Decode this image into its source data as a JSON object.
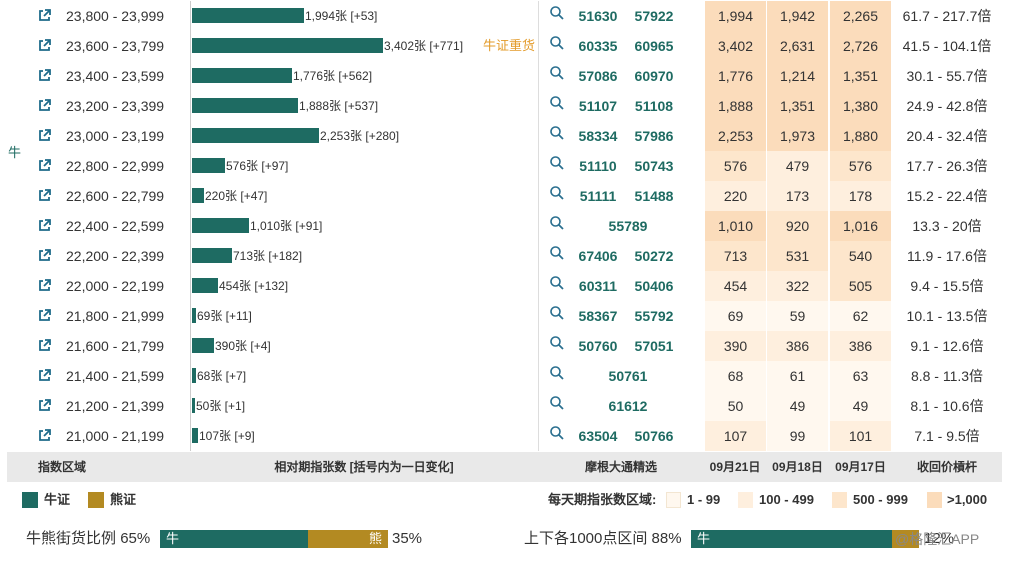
{
  "side_label": "牛",
  "rows": [
    {
      "range": "23,800 - 23,999",
      "bar_frac": 0.32,
      "bar_text": "1,994张 [+53]",
      "tag": "",
      "codes": [
        "51630",
        "57922"
      ],
      "v": [
        "1,994",
        "1,942",
        "2,265"
      ],
      "lvl": [
        4,
        4,
        4
      ],
      "mult": "61.7 - 217.7倍"
    },
    {
      "range": "23,600 - 23,799",
      "bar_frac": 0.546,
      "bar_text": "3,402张 [+771]",
      "tag": "牛证重货",
      "codes": [
        "60335",
        "60965"
      ],
      "v": [
        "3,402",
        "2,631",
        "2,726"
      ],
      "lvl": [
        4,
        4,
        4
      ],
      "mult": "41.5 - 104.1倍"
    },
    {
      "range": "23,400 - 23,599",
      "bar_frac": 0.285,
      "bar_text": "1,776张 [+562]",
      "tag": "",
      "codes": [
        "57086",
        "60970"
      ],
      "v": [
        "1,776",
        "1,214",
        "1,351"
      ],
      "lvl": [
        4,
        4,
        4
      ],
      "mult": "30.1 - 55.7倍"
    },
    {
      "range": "23,200 - 23,399",
      "bar_frac": 0.303,
      "bar_text": "1,888张 [+537]",
      "tag": "",
      "codes": [
        "51107",
        "51108"
      ],
      "v": [
        "1,888",
        "1,351",
        "1,380"
      ],
      "lvl": [
        4,
        4,
        4
      ],
      "mult": "24.9 - 42.8倍"
    },
    {
      "range": "23,000 - 23,199",
      "bar_frac": 0.362,
      "bar_text": "2,253张 [+280]",
      "tag": "",
      "codes": [
        "58334",
        "57986"
      ],
      "v": [
        "2,253",
        "1,973",
        "1,880"
      ],
      "lvl": [
        4,
        4,
        4
      ],
      "mult": "20.4 - 32.4倍"
    },
    {
      "range": "22,800 - 22,999",
      "bar_frac": 0.093,
      "bar_text": "576张 [+97]",
      "tag": "",
      "codes": [
        "51110",
        "50743"
      ],
      "v": [
        "576",
        "479",
        "576"
      ],
      "lvl": [
        3,
        2,
        3
      ],
      "mult": "17.7 - 26.3倍"
    },
    {
      "range": "22,600 - 22,799",
      "bar_frac": 0.035,
      "bar_text": "220张 [+47]",
      "tag": "",
      "codes": [
        "51111",
        "51488"
      ],
      "v": [
        "220",
        "173",
        "178"
      ],
      "lvl": [
        2,
        2,
        2
      ],
      "mult": "15.2 - 22.4倍"
    },
    {
      "range": "22,400 - 22,599",
      "bar_frac": 0.162,
      "bar_text": "1,010张 [+91]",
      "tag": "",
      "codes": [
        "55789"
      ],
      "v": [
        "1,010",
        "920",
        "1,016"
      ],
      "lvl": [
        4,
        3,
        4
      ],
      "mult": "13.3 - 20倍"
    },
    {
      "range": "22,200 - 22,399",
      "bar_frac": 0.115,
      "bar_text": "713张 [+182]",
      "tag": "",
      "codes": [
        "67406",
        "50272"
      ],
      "v": [
        "713",
        "531",
        "540"
      ],
      "lvl": [
        3,
        3,
        3
      ],
      "mult": "11.9 - 17.6倍"
    },
    {
      "range": "22,000 - 22,199",
      "bar_frac": 0.073,
      "bar_text": "454张 [+132]",
      "tag": "",
      "codes": [
        "60311",
        "50406"
      ],
      "v": [
        "454",
        "322",
        "505"
      ],
      "lvl": [
        2,
        2,
        3
      ],
      "mult": "9.4 - 15.5倍"
    },
    {
      "range": "21,800 - 21,999",
      "bar_frac": 0.011,
      "bar_text": "69张 [+11]",
      "tag": "",
      "codes": [
        "58367",
        "55792"
      ],
      "v": [
        "69",
        "59",
        "62"
      ],
      "lvl": [
        1,
        1,
        1
      ],
      "mult": "10.1 - 13.5倍"
    },
    {
      "range": "21,600 - 21,799",
      "bar_frac": 0.063,
      "bar_text": "390张 [+4]",
      "tag": "",
      "codes": [
        "50760",
        "57051"
      ],
      "v": [
        "390",
        "386",
        "386"
      ],
      "lvl": [
        2,
        2,
        2
      ],
      "mult": "9.1 - 12.6倍"
    },
    {
      "range": "21,400 - 21,599",
      "bar_frac": 0.011,
      "bar_text": "68张 [+7]",
      "tag": "",
      "codes": [
        "50761"
      ],
      "v": [
        "68",
        "61",
        "63"
      ],
      "lvl": [
        1,
        1,
        1
      ],
      "mult": "8.8 - 11.3倍"
    },
    {
      "range": "21,200 - 21,399",
      "bar_frac": 0.008,
      "bar_text": "50张 [+1]",
      "tag": "",
      "codes": [
        "61612"
      ],
      "v": [
        "50",
        "49",
        "49"
      ],
      "lvl": [
        1,
        1,
        1
      ],
      "mult": "8.1 - 10.6倍"
    },
    {
      "range": "21,000 - 21,199",
      "bar_frac": 0.017,
      "bar_text": "107张 [+9]",
      "tag": "",
      "codes": [
        "63504",
        "50766"
      ],
      "v": [
        "107",
        "99",
        "101"
      ],
      "lvl": [
        2,
        1,
        2
      ],
      "mult": "7.1 - 9.5倍"
    }
  ],
  "header": {
    "col_range": "指数区域",
    "col_bar": "相对期指张数 [括号内为一日变化]",
    "col_codes": "摩根大通精选",
    "col_d1": "09月21日",
    "col_d2": "09月18日",
    "col_d3": "09月17日",
    "col_mult": "收回价槓杆"
  },
  "legend": {
    "bull": "牛证",
    "bear": "熊证",
    "bull_color": "#1e6b62",
    "bear_color": "#b38a22",
    "range_title": "每天期指张数区域:",
    "ranges": [
      "1 - 99",
      "100 - 499",
      "500 - 999",
      ">1,000"
    ]
  },
  "ratio": {
    "left_label": "牛熊街货比例",
    "left_bull_pct": "65%",
    "left_bull_frac": 0.65,
    "left_bull_text": "牛",
    "left_bear_text": "熊",
    "left_bear_pct": "35%",
    "right_label": "上下各1000点区间",
    "right_bull_pct": "88%",
    "right_bull_frac": 0.88,
    "right_bull_text": "牛",
    "right_bear_pct": "12%",
    "watermark": "@格隆汇APP"
  }
}
